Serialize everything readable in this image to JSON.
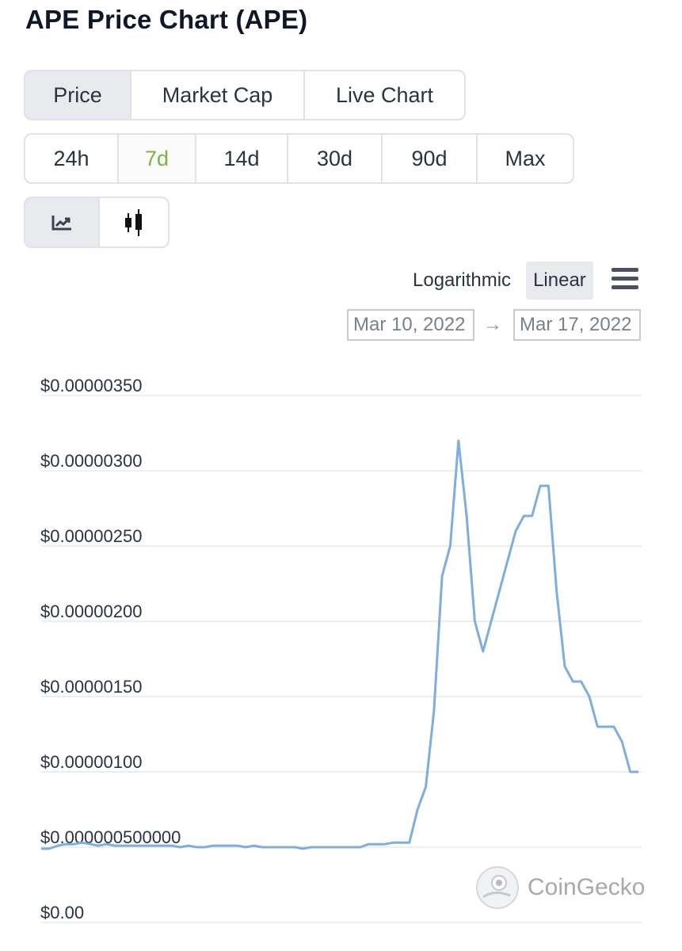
{
  "page_title": "APE Price Chart (APE)",
  "main_tabs": [
    {
      "label": "Price",
      "active": true
    },
    {
      "label": "Market Cap",
      "active": false
    },
    {
      "label": "Live Chart",
      "active": false
    }
  ],
  "range_tabs": [
    {
      "label": "24h",
      "selected": false
    },
    {
      "label": "7d",
      "selected": true
    },
    {
      "label": "14d",
      "selected": false
    },
    {
      "label": "30d",
      "selected": false
    },
    {
      "label": "90d",
      "selected": false
    },
    {
      "label": "Max",
      "selected": false
    }
  ],
  "chart_type_tabs": [
    {
      "icon": "line-chart-icon",
      "active": true
    },
    {
      "icon": "candlestick-icon",
      "active": false
    }
  ],
  "scale_options": {
    "log_label": "Logarithmic",
    "linear_label": "Linear",
    "selected": "Linear"
  },
  "menu_icon": "hamburger-menu-icon",
  "date_range": {
    "from": "Mar 10, 2022",
    "arrow": "→",
    "to": "Mar 17, 2022"
  },
  "watermark": "CoinGecko",
  "colors": {
    "line": "#7eaee0",
    "grid": "#e6e8eb",
    "selected_range": "#7cb342"
  },
  "chart_data": {
    "type": "line",
    "ylim": [
      0,
      3.5e-06
    ],
    "y_tick_labels": [
      "$0.00000350",
      "$0.00000300",
      "$0.00000250",
      "$0.00000200",
      "$0.00000150",
      "$0.00000100",
      "$0.000000500000",
      "$0.00"
    ],
    "y_tick_values": [
      3.5e-06,
      3e-06,
      2.5e-06,
      2e-06,
      1.5e-06,
      1e-06,
      5e-07,
      0
    ],
    "grid": true,
    "series": [
      {
        "values": [
          4.9e-07,
          4.9e-07,
          5.1e-07,
          5.2e-07,
          5.2e-07,
          5.3e-07,
          5.2e-07,
          5.1e-07,
          5.2e-07,
          5.1e-07,
          5.1e-07,
          5.1e-07,
          5.1e-07,
          5.1e-07,
          5.1e-07,
          5.1e-07,
          5.1e-07,
          5e-07,
          5.1e-07,
          5e-07,
          5e-07,
          5.1e-07,
          5.1e-07,
          5.1e-07,
          5.1e-07,
          5e-07,
          5.1e-07,
          5e-07,
          5e-07,
          5e-07,
          5e-07,
          5e-07,
          4.9e-07,
          5e-07,
          5e-07,
          5e-07,
          5e-07,
          5e-07,
          5e-07,
          5e-07,
          5.2e-07,
          5.2e-07,
          5.2e-07,
          5.3e-07,
          5.3e-07,
          5.3e-07,
          7.5e-07,
          9e-07,
          1.4e-06,
          2.3e-06,
          2.5e-06,
          3.2e-06,
          2.7e-06,
          2e-06,
          1.8e-06,
          2e-06,
          2.2e-06,
          2.4e-06,
          2.6e-06,
          2.7e-06,
          2.7e-06,
          2.9e-06,
          2.9e-06,
          2.2e-06,
          1.7e-06,
          1.6e-06,
          1.6e-06,
          1.5e-06,
          1.3e-06,
          1.3e-06,
          1.3e-06,
          1.2e-06,
          1e-06,
          1e-06
        ]
      }
    ]
  }
}
